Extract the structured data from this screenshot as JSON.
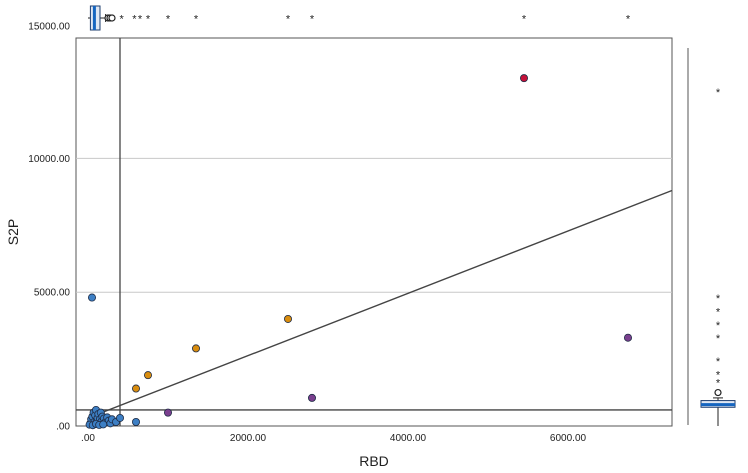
{
  "chart_data": {
    "type": "scatter",
    "xlabel": "RBD",
    "ylabel": "S2P",
    "xlim": [
      -150,
      7300
    ],
    "ylim": [
      0,
      14500
    ],
    "x_ticks": [
      {
        "value": 0,
        "label": ".00"
      },
      {
        "value": 2000,
        "label": "2000.00"
      },
      {
        "value": 4000,
        "label": "4000.00"
      },
      {
        "value": 6000,
        "label": "6000.00"
      }
    ],
    "y_ticks": [
      {
        "value": 0,
        "label": ".00"
      },
      {
        "value": 5000,
        "label": "5000.00"
      },
      {
        "value": 10000,
        "label": "10000.00"
      },
      {
        "value": 15000,
        "label": "15000.00"
      }
    ],
    "gridlines": "horizontal",
    "reference_lines": {
      "x": 400,
      "y": 600
    },
    "fit_line": {
      "x": [
        0,
        7300
      ],
      "y": [
        300,
        8800
      ]
    },
    "colors": {
      "blue": "#3d7fc4",
      "orange": "#d98d0f",
      "purple": "#7a3f8e",
      "red": "#c4123a"
    },
    "series": [
      {
        "color": "blue",
        "points": [
          [
            50,
            4800
          ],
          [
            30,
            100
          ],
          [
            40,
            250
          ],
          [
            55,
            350
          ],
          [
            70,
            500
          ],
          [
            80,
            150
          ],
          [
            90,
            400
          ],
          [
            100,
            600
          ],
          [
            110,
            200
          ],
          [
            120,
            300
          ],
          [
            130,
            450
          ],
          [
            140,
            100
          ],
          [
            150,
            250
          ],
          [
            160,
            500
          ],
          [
            170,
            180
          ],
          [
            180,
            350
          ],
          [
            200,
            280
          ],
          [
            220,
            150
          ],
          [
            240,
            320
          ],
          [
            260,
            200
          ],
          [
            280,
            100
          ],
          [
            300,
            250
          ],
          [
            350,
            150
          ],
          [
            400,
            300
          ],
          [
            600,
            150
          ],
          [
            20,
            50
          ],
          [
            60,
            30
          ],
          [
            100,
            80
          ],
          [
            140,
            40
          ],
          [
            190,
            60
          ]
        ]
      },
      {
        "color": "orange",
        "points": [
          [
            600,
            1400
          ],
          [
            750,
            1900
          ],
          [
            1350,
            2900
          ],
          [
            2500,
            4000
          ]
        ]
      },
      {
        "color": "purple",
        "points": [
          [
            1000,
            500
          ],
          [
            2800,
            1050
          ],
          [
            6750,
            3300
          ]
        ]
      },
      {
        "color": "red",
        "points": [
          [
            5450,
            13000
          ]
        ]
      }
    ],
    "top_boxplot": {
      "median": 80,
      "q1": 30,
      "q3": 150,
      "whisker_low": 0,
      "whisker_high": 220,
      "circle_outliers": [
        250,
        275,
        300
      ],
      "star_outliers": [
        420,
        580,
        650,
        750,
        1000,
        1350,
        2500,
        2800,
        5450,
        6750
      ]
    },
    "right_boxplot": {
      "median": 800,
      "q1": 700,
      "q3": 950,
      "whisker_low": 0,
      "whisker_high": 1050,
      "circle_outliers": [
        1250
      ],
      "star_outliers": [
        1650,
        1950,
        2450,
        3300,
        3800,
        4300,
        4800,
        12500
      ]
    }
  }
}
